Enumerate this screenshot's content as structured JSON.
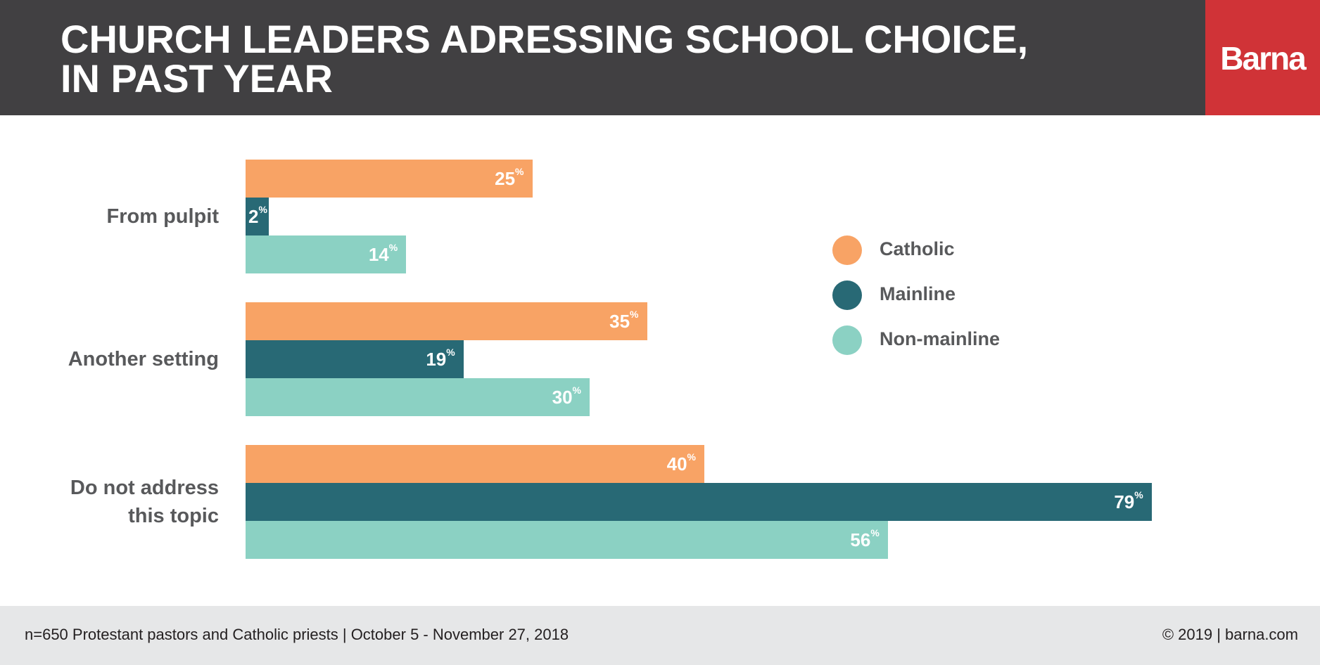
{
  "header": {
    "title_lines": [
      "CHURCH LEADERS ADRESSING SCHOOL CHOICE,",
      "IN PAST YEAR"
    ],
    "logo": "Barna"
  },
  "chart_data": {
    "type": "bar",
    "orientation": "horizontal",
    "title": "CHURCH LEADERS ADRESSING SCHOOL CHOICE, IN PAST YEAR",
    "categories": [
      "From pulpit",
      "Another setting",
      "Do not address this topic"
    ],
    "series": [
      {
        "name": "Catholic",
        "color": "#f8a365",
        "values": [
          25,
          35,
          40
        ]
      },
      {
        "name": "Mainline",
        "color": "#286975",
        "values": [
          2,
          19,
          79
        ]
      },
      {
        "name": "Non-mainline",
        "color": "#8bd1c3",
        "values": [
          14,
          30,
          56
        ]
      }
    ],
    "value_suffix": "%",
    "xlim": [
      0,
      100
    ],
    "grid": false,
    "legend": "right"
  },
  "footer": {
    "source": "n=650 Protestant pastors and Catholic priests | October 5 - November 27, 2018",
    "copyright": "© 2019 | barna.com"
  }
}
